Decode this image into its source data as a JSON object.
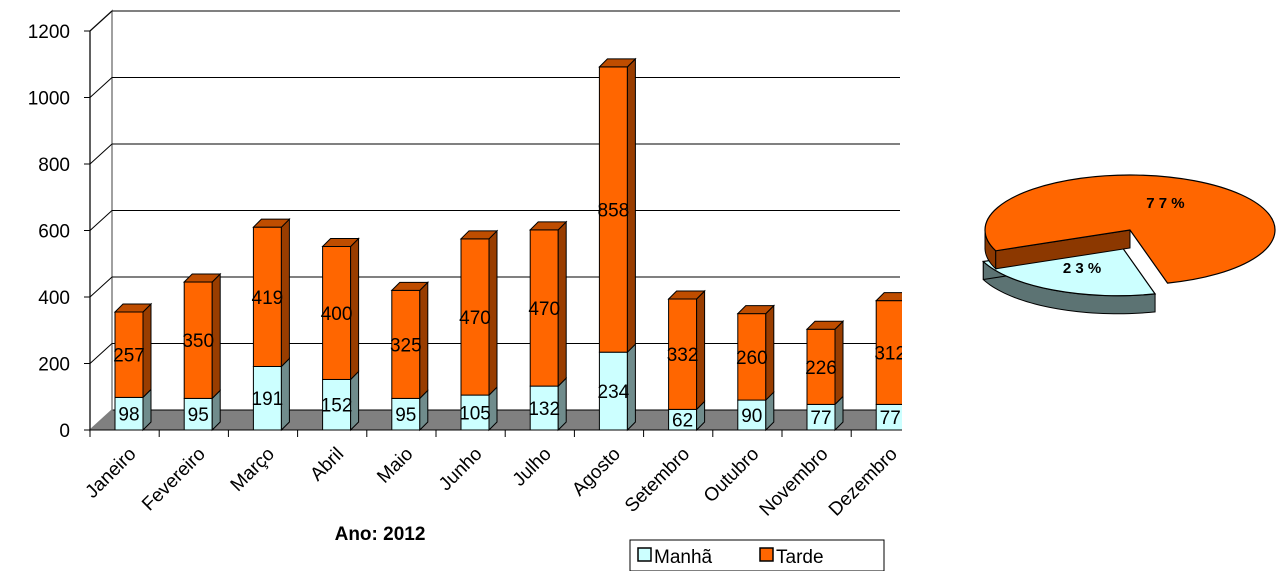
{
  "chart_data": [
    {
      "type": "bar",
      "stacked": true,
      "title": "",
      "xlabel": "Ano: 2012",
      "ylabel": "",
      "ylim": [
        0,
        1200
      ],
      "yticks": [
        0,
        200,
        400,
        600,
        800,
        1000,
        1200
      ],
      "grid": true,
      "legend": "bottom-right",
      "categories": [
        "Janeiro",
        "Fevereiro",
        "Março",
        "Abril",
        "Maio",
        "Junho",
        "Julho",
        "Agosto",
        "Setembro",
        "Outubro",
        "Novembro",
        "Dezembro"
      ],
      "series": [
        {
          "name": "Manhã",
          "color": "#ccffff",
          "values": [
            98,
            95,
            191,
            152,
            95,
            105,
            132,
            234,
            62,
            90,
            77,
            77
          ]
        },
        {
          "name": "Tarde",
          "color": "#ff6600",
          "values": [
            257,
            350,
            419,
            400,
            325,
            470,
            470,
            858,
            332,
            260,
            226,
            312
          ]
        }
      ]
    },
    {
      "type": "pie",
      "title": "",
      "slices": [
        {
          "name": "Manhã",
          "value": 23,
          "label": "2 3 %",
          "color": "#ccffff",
          "exploded": true
        },
        {
          "name": "Tarde",
          "value": 77,
          "label": "7 7 %",
          "color": "#ff6600",
          "exploded": false
        }
      ]
    }
  ]
}
